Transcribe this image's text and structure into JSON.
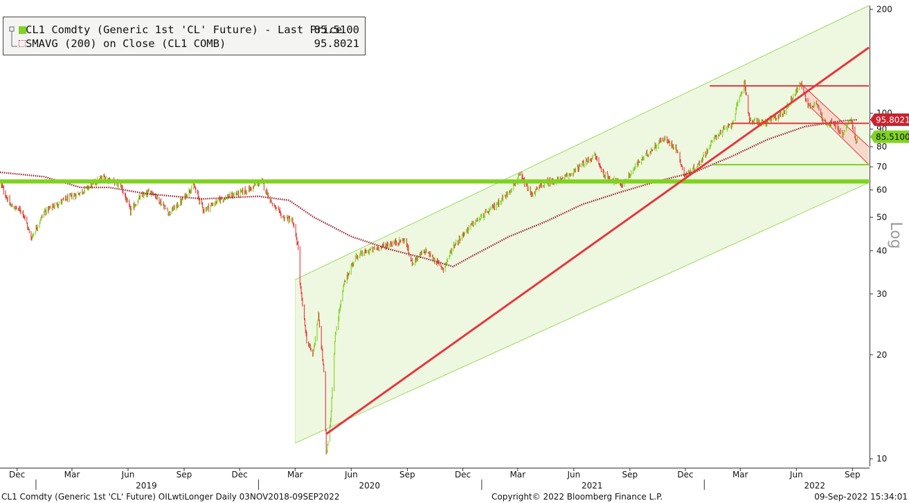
{
  "legend": {
    "series_1_label": "CL1 Comdty (Generic 1st 'CL' Future) - Last Price",
    "series_1_value": "85.5100",
    "series_2_label": "SMAVG (200)  on Close (CL1 COMB)",
    "series_2_value": "95.8021"
  },
  "footer": {
    "left": "CL1 Comdty (Generic 1st 'CL' Future) OILwtiLonger  Daily 03NOV2018-09SEP2022",
    "center": "Copyright© 2022 Bloomberg Finance L.P.",
    "right": "09-Sep-2022 15:34:01"
  },
  "colors": {
    "price_up": "#7fd320",
    "price_down": "#e8343c",
    "sma": "#9b2230",
    "channel_fill": "#eef7e0",
    "channel_line": "#9fd860",
    "support_line": "#7fd320",
    "resistance_line": "#e8343c",
    "downtrend_fill": "#f6d5c8",
    "price_tag": "#7fd320",
    "sma_tag": "#c8232f"
  },
  "chart_data": {
    "type": "candlestick",
    "y_scale": "log",
    "y_axis_label": "Log",
    "y_ticks": [
      10,
      20,
      30,
      40,
      50,
      60,
      70,
      80,
      90,
      100,
      200
    ],
    "y_tick_labels": [
      "10",
      "20",
      "30",
      "40",
      "50",
      "60",
      "70",
      "80",
      "90",
      "100",
      "200"
    ],
    "ylim": [
      9.6,
      205
    ],
    "xlim": [
      "2018-11-03",
      "2022-09-29"
    ],
    "x_month_ticks": [
      {
        "date": "2018-12-01",
        "label": "Dec"
      },
      {
        "date": "2019-03-01",
        "label": "Mar"
      },
      {
        "date": "2019-06-01",
        "label": "Jun"
      },
      {
        "date": "2019-09-01",
        "label": "Sep"
      },
      {
        "date": "2019-12-01",
        "label": "Dec"
      },
      {
        "date": "2020-03-01",
        "label": "Mar"
      },
      {
        "date": "2020-06-01",
        "label": "Jun"
      },
      {
        "date": "2020-09-01",
        "label": "Sep"
      },
      {
        "date": "2020-12-01",
        "label": "Dec"
      },
      {
        "date": "2021-03-01",
        "label": "Mar"
      },
      {
        "date": "2021-06-01",
        "label": "Jun"
      },
      {
        "date": "2021-09-01",
        "label": "Sep"
      },
      {
        "date": "2021-12-01",
        "label": "Dec"
      },
      {
        "date": "2022-03-01",
        "label": "Mar"
      },
      {
        "date": "2022-06-01",
        "label": "Jun"
      },
      {
        "date": "2022-09-01",
        "label": "Sep"
      }
    ],
    "x_year_labels": [
      {
        "date": "2019-07-01",
        "label": "2019"
      },
      {
        "date": "2020-07-01",
        "label": "2020"
      },
      {
        "date": "2021-07-01",
        "label": "2021"
      },
      {
        "date": "2022-07-01",
        "label": "2022"
      }
    ],
    "x_year_dividers": [
      "2019-01-01",
      "2020-01-01",
      "2021-01-01",
      "2022-01-01"
    ],
    "price_path": [
      [
        "2018-11-03",
        63
      ],
      [
        "2018-11-20",
        54
      ],
      [
        "2018-12-10",
        52
      ],
      [
        "2018-12-24",
        43.5
      ],
      [
        "2019-01-15",
        52
      ],
      [
        "2019-02-15",
        56
      ],
      [
        "2019-03-15",
        59
      ],
      [
        "2019-04-22",
        65.5
      ],
      [
        "2019-05-20",
        62
      ],
      [
        "2019-06-05",
        52
      ],
      [
        "2019-06-20",
        57
      ],
      [
        "2019-07-10",
        59.5
      ],
      [
        "2019-08-07",
        51.5
      ],
      [
        "2019-08-25",
        55
      ],
      [
        "2019-09-16",
        62
      ],
      [
        "2019-10-03",
        52.5
      ],
      [
        "2019-11-01",
        56.5
      ],
      [
        "2019-12-15",
        60
      ],
      [
        "2020-01-06",
        63.5
      ],
      [
        "2020-01-25",
        54
      ],
      [
        "2020-02-10",
        50
      ],
      [
        "2020-02-25",
        49
      ],
      [
        "2020-03-06",
        41
      ],
      [
        "2020-03-08",
        33
      ],
      [
        "2020-03-20",
        22
      ],
      [
        "2020-03-30",
        20
      ],
      [
        "2020-04-08",
        26
      ],
      [
        "2020-04-17",
        18
      ],
      [
        "2020-04-21",
        10.3
      ],
      [
        "2020-04-28",
        13
      ],
      [
        "2020-05-06",
        23
      ],
      [
        "2020-05-20",
        32
      ],
      [
        "2020-06-08",
        38.5
      ],
      [
        "2020-07-01",
        40
      ],
      [
        "2020-08-05",
        42
      ],
      [
        "2020-08-28",
        43
      ],
      [
        "2020-09-08",
        37
      ],
      [
        "2020-10-01",
        40
      ],
      [
        "2020-10-30",
        35.5
      ],
      [
        "2020-11-16",
        41.5
      ],
      [
        "2020-12-15",
        47.5
      ],
      [
        "2021-01-15",
        52.5
      ],
      [
        "2021-02-10",
        58
      ],
      [
        "2021-03-05",
        66
      ],
      [
        "2021-03-23",
        58
      ],
      [
        "2021-04-15",
        63
      ],
      [
        "2021-05-15",
        64.5
      ],
      [
        "2021-06-15",
        71
      ],
      [
        "2021-07-06",
        75.5
      ],
      [
        "2021-07-20",
        66.5
      ],
      [
        "2021-08-20",
        62
      ],
      [
        "2021-09-15",
        72
      ],
      [
        "2021-10-25",
        84.5
      ],
      [
        "2021-11-15",
        80
      ],
      [
        "2021-11-30",
        66
      ],
      [
        "2021-12-20",
        70
      ],
      [
        "2022-01-20",
        86
      ],
      [
        "2022-02-15",
        93
      ],
      [
        "2022-03-08",
        123.7
      ],
      [
        "2022-03-16",
        95
      ],
      [
        "2022-04-11",
        94
      ],
      [
        "2022-05-10",
        100
      ],
      [
        "2022-06-08",
        122
      ],
      [
        "2022-06-22",
        104
      ],
      [
        "2022-07-05",
        108
      ],
      [
        "2022-07-14",
        95
      ],
      [
        "2022-08-01",
        93
      ],
      [
        "2022-08-16",
        86.5
      ],
      [
        "2022-08-29",
        97
      ],
      [
        "2022-09-07",
        81.9
      ],
      [
        "2022-09-09",
        85.51
      ]
    ],
    "sma_200_path": [
      [
        "2018-11-03",
        67.5
      ],
      [
        "2019-01-15",
        65.5
      ],
      [
        "2019-03-15",
        61
      ],
      [
        "2019-05-01",
        61
      ],
      [
        "2019-07-01",
        58.5
      ],
      [
        "2019-10-01",
        56.5
      ],
      [
        "2020-01-01",
        57.5
      ],
      [
        "2020-02-20",
        56
      ],
      [
        "2020-04-01",
        50
      ],
      [
        "2020-06-01",
        44
      ],
      [
        "2020-08-01",
        40.5
      ],
      [
        "2020-10-01",
        38
      ],
      [
        "2020-11-15",
        36
      ],
      [
        "2020-12-15",
        38.5
      ],
      [
        "2021-02-15",
        44
      ],
      [
        "2021-04-15",
        48.5
      ],
      [
        "2021-06-15",
        54.5
      ],
      [
        "2021-08-15",
        59
      ],
      [
        "2021-10-15",
        63.5
      ],
      [
        "2021-12-15",
        67.5
      ],
      [
        "2022-02-15",
        75
      ],
      [
        "2022-04-15",
        84
      ],
      [
        "2022-06-15",
        91.5
      ],
      [
        "2022-08-15",
        95
      ],
      [
        "2022-09-09",
        95.8021
      ]
    ],
    "annotations": {
      "channel": {
        "lower": [
          [
            "2020-03-01",
            11.1
          ],
          [
            "2022-09-28",
            63
          ]
        ],
        "upper": [
          [
            "2020-03-01",
            33
          ],
          [
            "2022-09-28",
            205
          ]
        ]
      },
      "rising_trendline": [
        [
          "2020-04-21",
          11.8
        ],
        [
          "2022-09-28",
          155
        ]
      ],
      "horizontal_lines": [
        {
          "kind": "support",
          "value": 63.5,
          "from": "2018-11-03",
          "to": "2022-09-28",
          "thick": true
        },
        {
          "kind": "support",
          "value": 71,
          "from": "2022-01-15",
          "to": "2022-09-28",
          "thick": false
        },
        {
          "kind": "resistance",
          "value": 120,
          "from": "2022-01-10",
          "to": "2022-09-28",
          "thick": false
        },
        {
          "kind": "resistance",
          "value": 93.5,
          "from": "2022-02-15",
          "to": "2022-09-28",
          "thick": false
        }
      ],
      "down_channel": {
        "upper": [
          [
            "2022-06-08",
            122
          ],
          [
            "2022-09-28",
            80
          ]
        ],
        "lower": [
          [
            "2022-06-20",
            106
          ],
          [
            "2022-09-28",
            71
          ]
        ]
      }
    },
    "last_price_tag": "85.5100",
    "sma_tag": "95.8021"
  }
}
